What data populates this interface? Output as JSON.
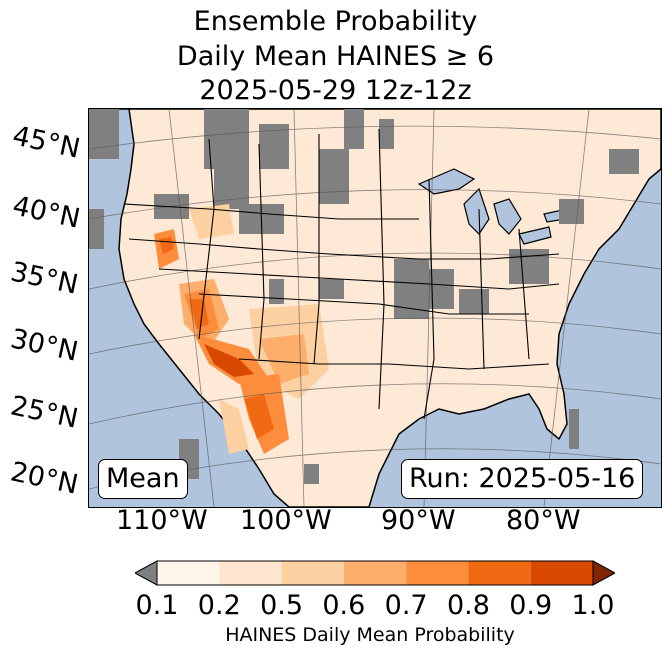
{
  "title": {
    "line1": "Ensemble Probability",
    "line2": "Daily Mean HAINES ≥ 6",
    "line3": "2025-05-29 12z-12z"
  },
  "latitude_labels": [
    "45°N",
    "40°N",
    "35°N",
    "30°N",
    "25°N",
    "20°N"
  ],
  "longitude_labels": [
    "110°W",
    "100°W",
    "90°W",
    "80°W"
  ],
  "boxes": {
    "left": "Mean",
    "right": "Run: 2025-05-16"
  },
  "colorbar": {
    "ticks": [
      "0.1",
      "0.2",
      "0.5",
      "0.6",
      "0.7",
      "0.8",
      "0.9",
      "1.0"
    ],
    "colors": [
      "#fff5eb",
      "#fee6ce",
      "#fdd0a2",
      "#fdae6b",
      "#fd8d3c",
      "#f16913",
      "#d94801",
      "#a63603"
    ],
    "under_color": "#808080",
    "over_color": "#7f2704",
    "label": "HAINES Daily Mean Probability"
  },
  "map_colors": {
    "ocean": "#b0c4de",
    "land_low": "#fde9d5",
    "missing": "#808080"
  }
}
